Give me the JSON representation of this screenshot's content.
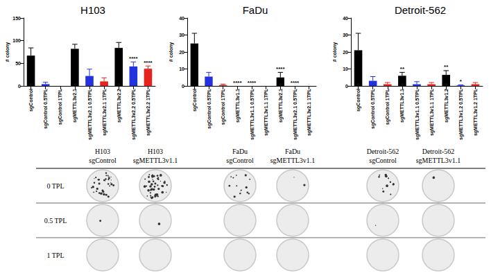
{
  "chart_data": [
    {
      "type": "bar",
      "title": "H103",
      "y_label": "# colony",
      "categories": [
        "sgControl",
        "sgControl 0.5TPL",
        "sgControl 1TPL",
        "sgMETTL3v2.1",
        "sgMETTL3v2.1 0.5TPL",
        "sgMETTL3v2.1 1TPL",
        "sgMETTL3v2.2",
        "sgMETTL3v2.2 0.5TPL",
        "sgMETTL3v2.2 1TPL"
      ],
      "values": [
        67,
        4,
        0,
        82,
        22,
        10,
        84,
        43,
        38
      ],
      "errors": [
        17,
        4,
        0,
        10,
        15,
        8,
        12,
        10,
        6
      ],
      "colors": [
        "#000000",
        "#2233dd",
        "#e3231c",
        "#000000",
        "#2233dd",
        "#e3231c",
        "#000000",
        "#2233dd",
        "#e3231c"
      ],
      "significance": [
        null,
        null,
        null,
        null,
        null,
        null,
        null,
        "****",
        "****"
      ],
      "ylim": [
        0,
        150
      ],
      "yticks": [
        0,
        50,
        100,
        150
      ],
      "grid": false
    },
    {
      "type": "bar",
      "title": "FaDu",
      "y_label": "# colony",
      "categories": [
        "sgControl",
        "sgControl 0.5TPL",
        "sgControl 1TPL",
        "sgMETTL3v1.1",
        "sgMETTL3v1.1 0.5TPL",
        "sgMETTL3v1.1 1TPL",
        "sgMETTL3v2.1",
        "sgMETTL3v2.1 0.5TPL",
        "sgMETTL3v2.1 1TPL"
      ],
      "values": [
        25,
        5.5,
        0.5,
        0,
        0,
        0,
        5,
        0,
        0
      ],
      "errors": [
        6,
        2.5,
        0.5,
        0,
        0,
        0,
        3,
        0,
        0
      ],
      "colors": [
        "#000000",
        "#2233dd",
        "#e3231c",
        "#000000",
        "#2233dd",
        "#e3231c",
        "#000000",
        "#2233dd",
        "#e3231c"
      ],
      "significance": [
        null,
        null,
        null,
        "****",
        "****",
        null,
        "****",
        "****",
        null
      ],
      "ylim": [
        0,
        40
      ],
      "yticks": [
        0,
        10,
        20,
        30,
        40
      ],
      "grid": false
    },
    {
      "type": "bar",
      "title": "Detroit-562",
      "y_label": "# colony",
      "categories": [
        "sgControl",
        "sgControl 0.5TPL",
        "sgControl 1TPL",
        "sgMETTL3v1.1",
        "sgMETTL3v1.1 0.5TPL",
        "sgMETTL3v1.1 1TPL",
        "sgMETTL3v1.2",
        "sgMETTL3v1.2 0.5TPL",
        "sgMETTL3v1.2 1TPL"
      ],
      "values": [
        21,
        3,
        1,
        6,
        1,
        1,
        6.5,
        0.3,
        1
      ],
      "errors": [
        10,
        2.5,
        1,
        2,
        1.5,
        1,
        2.5,
        0.3,
        1
      ],
      "colors": [
        "#000000",
        "#2233dd",
        "#e3231c",
        "#000000",
        "#2233dd",
        "#e3231c",
        "#000000",
        "#2233dd",
        "#e3231c"
      ],
      "significance": [
        null,
        null,
        null,
        "**",
        null,
        null,
        "**",
        "*",
        null
      ],
      "ylim": [
        0,
        40
      ],
      "yticks": [
        0,
        10,
        20,
        30,
        40
      ],
      "grid": false
    }
  ],
  "plate_panel": {
    "columns": [
      [
        "H103",
        "sgControl"
      ],
      [
        "H103",
        "sgMETTL3v1.1"
      ],
      [
        "FaDu",
        "sgControl"
      ],
      [
        "FaDu",
        "sgMETTL3v1.1"
      ],
      [
        "Detroit-562",
        "sgControl"
      ],
      [
        "Detroit-562",
        "sgMETTL3v1.1"
      ]
    ],
    "rows": [
      "0 TPL",
      "0.5 TPL",
      "1 TPL"
    ]
  }
}
